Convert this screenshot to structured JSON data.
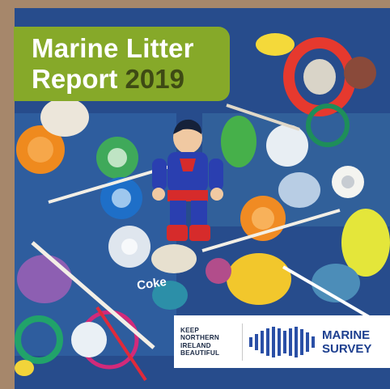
{
  "title": {
    "line1": "Marine Litter",
    "line2_word": "Report",
    "year": "2019"
  },
  "logos": {
    "kni": [
      "KEEP",
      "NORTHERN",
      "IRELAND",
      "BEAUTIFUL"
    ],
    "survey": [
      "MARINE",
      "SURVEY"
    ]
  },
  "colors": {
    "title_background": "#86a929",
    "year_text": "#3e4a14",
    "survey_blue": "#1d3f8f"
  },
  "photo_text": {
    "can_label": "Coke"
  }
}
